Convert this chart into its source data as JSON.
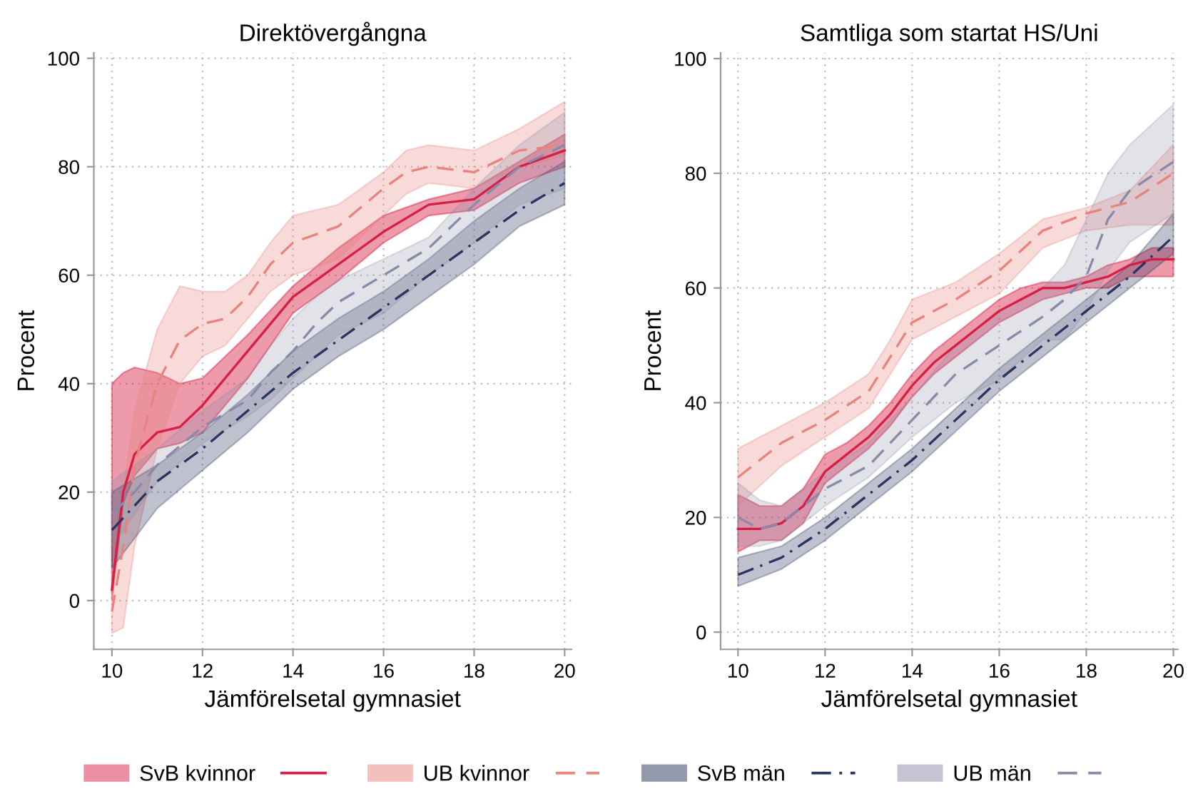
{
  "chart_data": [
    {
      "type": "line",
      "title": "Direktövergångna",
      "xlabel": "Jämförelsetal gymnasiet",
      "ylabel": "Procent",
      "xlim": [
        9.6,
        20.15
      ],
      "ylim": [
        -9,
        101
      ],
      "xticks": [
        10,
        12,
        14,
        16,
        18,
        20
      ],
      "yticks": [
        0,
        20,
        40,
        60,
        80,
        100
      ],
      "grid": true,
      "legend": "bottom",
      "marker": "none",
      "series": [
        {
          "name": "SvB kvinnor",
          "color": "#d61f45",
          "line_style": "solid",
          "x": [
            10,
            10.25,
            10.5,
            11,
            11.5,
            12,
            13,
            14,
            15,
            16,
            17,
            18,
            19,
            20
          ],
          "values": [
            2,
            20,
            27,
            31,
            32,
            36,
            46,
            56,
            62,
            68,
            73,
            74,
            80,
            83
          ],
          "lower": [
            0,
            18,
            23,
            28,
            29,
            31,
            41,
            53,
            59,
            66,
            71,
            72,
            77,
            80
          ],
          "upper": [
            40,
            42,
            43,
            42,
            40,
            41,
            49,
            58,
            65,
            71,
            74,
            76,
            81,
            86
          ]
        },
        {
          "name": "UB kvinnor",
          "color": "#e8837e",
          "line_style": "dashed",
          "x": [
            10,
            10.25,
            10.5,
            11,
            11.5,
            12,
            12.5,
            13,
            13.5,
            14,
            15,
            16,
            16.5,
            17,
            18,
            19,
            20
          ],
          "values": [
            -2,
            10,
            25,
            40,
            48,
            51,
            52,
            56,
            62,
            66,
            69,
            76,
            79,
            80,
            79,
            83,
            84
          ],
          "lower": [
            -6,
            -5,
            10,
            28,
            40,
            45,
            47,
            52,
            57,
            60,
            63,
            71,
            75,
            77,
            76,
            80,
            82
          ],
          "upper": [
            10,
            20,
            35,
            50,
            58,
            57,
            57,
            60,
            66,
            71,
            73,
            79,
            83,
            84,
            83,
            87,
            92
          ]
        },
        {
          "name": "SvB män",
          "color": "#2a355e",
          "line_style": "dashdot",
          "x": [
            10,
            11,
            12,
            13,
            14,
            15,
            16,
            17,
            18,
            19,
            20
          ],
          "values": [
            13,
            22,
            28,
            35,
            42,
            48,
            54,
            60,
            66,
            72,
            77
          ],
          "lower": [
            6,
            17,
            24,
            31,
            39,
            45,
            50,
            56,
            62,
            69,
            73
          ],
          "upper": [
            20,
            25,
            31,
            38,
            46,
            52,
            57,
            63,
            70,
            76,
            81
          ]
        },
        {
          "name": "UB män",
          "color": "#8a8aa8",
          "line_style": "dashed",
          "x": [
            10,
            10.5,
            11,
            12,
            13,
            13.5,
            14,
            14.5,
            15,
            16,
            17,
            18,
            19,
            20
          ],
          "values": [
            16,
            20,
            25,
            32,
            37,
            42,
            46,
            51,
            55,
            60,
            65,
            73,
            80,
            84
          ],
          "lower": [
            10,
            16,
            22,
            29,
            34,
            37,
            41,
            45,
            49,
            53,
            60,
            66,
            73,
            76
          ],
          "upper": [
            22,
            25,
            28,
            35,
            41,
            47,
            52,
            56,
            59,
            63,
            67,
            76,
            84,
            90
          ]
        }
      ]
    },
    {
      "type": "line",
      "title": "Samtliga som startat HS/Uni",
      "xlabel": "Jämförelsetal gymnasiet",
      "ylabel": "Procent",
      "xlim": [
        9.6,
        20.1
      ],
      "ylim": [
        -3,
        101
      ],
      "xticks": [
        10,
        12,
        14,
        16,
        18,
        20
      ],
      "yticks": [
        0,
        20,
        40,
        60,
        80,
        100
      ],
      "grid": true,
      "marker": "none",
      "series": [
        {
          "color": "#d61f45",
          "line_style": "solid",
          "x": [
            10,
            10.5,
            11,
            11.5,
            12,
            12.5,
            13,
            13.5,
            14,
            14.5,
            15,
            15.5,
            16,
            16.5,
            17,
            17.5,
            18,
            18.5,
            19,
            19.5,
            20
          ],
          "values": [
            18,
            18,
            19,
            22,
            28,
            31,
            34,
            38,
            43,
            47,
            50,
            53,
            56,
            58,
            60,
            60,
            61,
            62,
            64,
            65,
            65
          ],
          "lower": [
            14,
            16,
            16,
            19,
            26,
            29,
            32,
            36,
            41,
            45,
            48,
            51,
            54,
            56,
            58,
            59,
            60,
            60,
            62,
            62,
            62
          ],
          "upper": [
            24,
            22,
            22,
            25,
            31,
            33,
            36,
            40,
            45,
            49,
            52,
            55,
            58,
            60,
            61,
            61,
            62,
            64,
            65,
            67,
            67
          ]
        },
        {
          "color": "#e8837e",
          "line_style": "dashed",
          "x": [
            10,
            11,
            12,
            13,
            13.5,
            14,
            15,
            16,
            17,
            18,
            19,
            20
          ],
          "values": [
            27,
            33,
            37,
            42,
            48,
            54,
            58,
            63,
            70,
            73,
            75,
            80
          ],
          "lower": [
            22,
            29,
            34,
            39,
            45,
            51,
            55,
            59,
            67,
            70,
            71,
            71
          ],
          "upper": [
            32,
            36,
            40,
            45,
            51,
            58,
            61,
            66,
            72,
            74,
            77,
            85
          ]
        },
        {
          "color": "#2a355e",
          "line_style": "dashdot",
          "x": [
            10,
            11,
            12,
            13,
            14,
            15,
            16,
            17,
            18,
            19,
            20
          ],
          "values": [
            10,
            13,
            18,
            24,
            30,
            37,
            44,
            50,
            56,
            62,
            69
          ],
          "lower": [
            8,
            11,
            16,
            22,
            28,
            35,
            42,
            48,
            54,
            60,
            66
          ],
          "upper": [
            13,
            15,
            20,
            26,
            32,
            39,
            46,
            52,
            58,
            64,
            73
          ]
        },
        {
          "color": "#8a8aa8",
          "line_style": "dashed",
          "x": [
            10,
            10.5,
            11,
            12,
            13,
            14,
            15,
            16,
            17,
            17.5,
            18,
            18.5,
            19,
            20
          ],
          "values": [
            20,
            18,
            19,
            25,
            29,
            37,
            45,
            50,
            55,
            58,
            62,
            72,
            77,
            82
          ],
          "lower": [
            15,
            15,
            16,
            22,
            27,
            34,
            40,
            44,
            51,
            51,
            56,
            63,
            68,
            73
          ],
          "upper": [
            26,
            23,
            22,
            28,
            33,
            41,
            50,
            56,
            60,
            64,
            72,
            80,
            85,
            92
          ]
        }
      ]
    }
  ]
}
